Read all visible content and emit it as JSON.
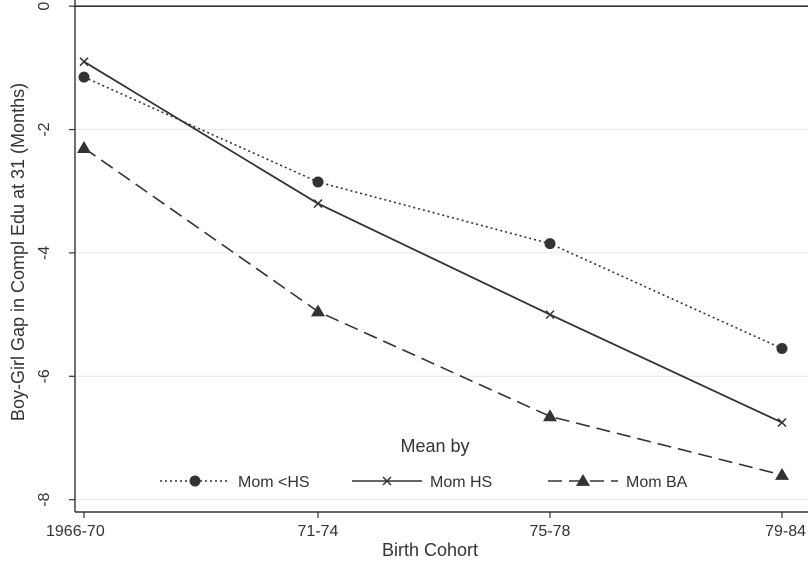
{
  "chart_data": {
    "type": "line",
    "title": "",
    "xlabel": "Birth Cohort",
    "ylabel": "Boy-Girl Gap in Compl Edu at 31 (Months)",
    "categories": [
      "1966-70",
      "71-74",
      "75-78",
      "79-84"
    ],
    "ylim": [
      -8.2,
      0.1
    ],
    "yticks": [
      0,
      -2,
      -4,
      -6,
      -8
    ],
    "yticklabels": [
      "0",
      "-2",
      "-4",
      "-6",
      "-8"
    ],
    "grid": true,
    "reference_line": 0,
    "legend": {
      "title": "Mean by",
      "placement": "bottom-inside"
    },
    "series": [
      {
        "name": "Mom <HS",
        "values": [
          -1.15,
          -2.85,
          -3.85,
          -5.55
        ],
        "marker": "circle",
        "line": "dotted",
        "color": "#333333"
      },
      {
        "name": "Mom HS",
        "values": [
          -0.9,
          -3.2,
          -5.0,
          -6.75
        ],
        "marker": "x",
        "line": "solid",
        "color": "#333333"
      },
      {
        "name": "Mom BA",
        "values": [
          -2.3,
          -4.95,
          -6.65,
          -7.6
        ],
        "marker": "triangle",
        "line": "dashed",
        "color": "#333333"
      }
    ]
  }
}
